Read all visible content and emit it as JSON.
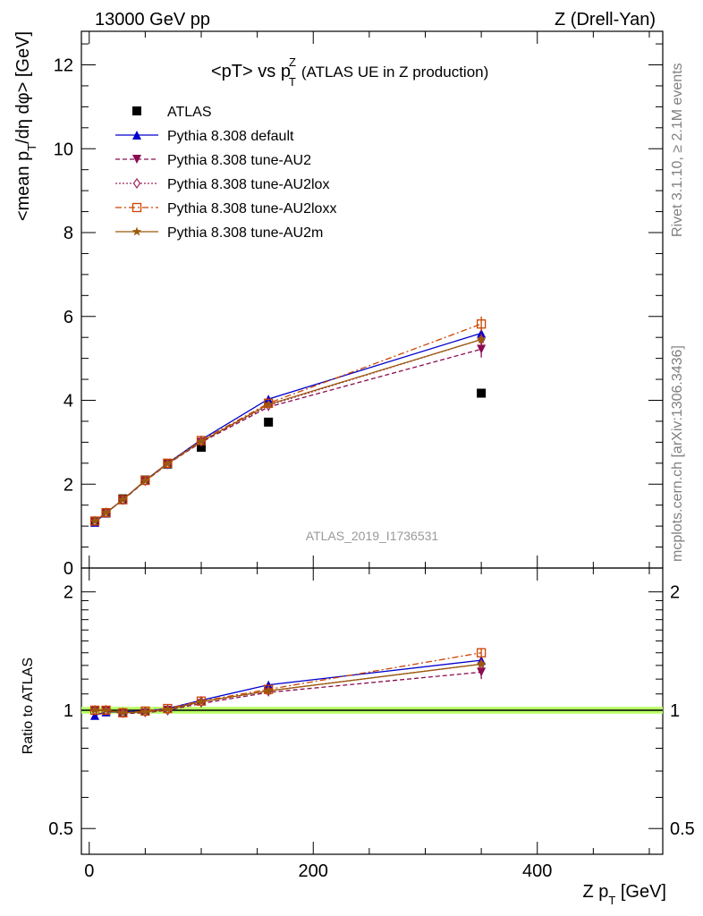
{
  "header": {
    "left": "13000 GeV pp",
    "right": "Z (Drell-Yan)"
  },
  "title": {
    "main": "<pT> vs p",
    "sup": "Z",
    "sub": "T",
    "suffix": "(ATLAS UE in Z production)"
  },
  "side_labels": {
    "rivet": "Rivet 3.1.10, ≥ 2.1M events",
    "mcplots": "mcplots.cern.ch [arXiv:1306.3436]"
  },
  "watermark": "ATLAS_2019_I1736531",
  "colors": {
    "ATLAS": "#000000",
    "Pythia 8.308 default": "#0000cc",
    "Pythia 8.308 tune-AU2": "#8b0a50",
    "Pythia 8.308 tune-AU2lox": "#a0245a",
    "Pythia 8.308 tune-AU2loxx": "#cc4400",
    "Pythia 8.308 tune-AU2m": "#9a5a0a",
    "ratio_band": "#b8ff66"
  },
  "chart_data": [
    {
      "type": "line",
      "panel": "main",
      "ylabel": "<mean p_T/dη dφ> [GeV]",
      "ylim": [
        0,
        12.8
      ],
      "yticks": [
        0,
        2,
        4,
        6,
        8,
        10,
        12
      ],
      "legend_placement": "top-left",
      "series": [
        {
          "name": "ATLAS",
          "marker": "square",
          "style": "none",
          "x": [
            5,
            15,
            30,
            50,
            70,
            100,
            160,
            350
          ],
          "y": [
            1.12,
            1.32,
            1.65,
            2.1,
            2.48,
            2.88,
            3.48,
            4.17
          ]
        },
        {
          "name": "Pythia 8.308 default",
          "marker": "triangle-up",
          "style": "solid",
          "x": [
            5,
            15,
            30,
            50,
            70,
            100,
            160,
            350
          ],
          "y": [
            1.09,
            1.31,
            1.63,
            2.09,
            2.5,
            3.06,
            4.03,
            5.6
          ],
          "err": [
            0,
            0,
            0,
            0,
            0,
            0,
            0,
            0.1
          ]
        },
        {
          "name": "Pythia 8.308 tune-AU2",
          "marker": "triangle-down",
          "style": "dashed",
          "x": [
            5,
            15,
            30,
            50,
            70,
            100,
            160,
            350
          ],
          "y": [
            1.12,
            1.32,
            1.62,
            2.07,
            2.48,
            3.0,
            3.84,
            5.22
          ],
          "err": [
            0,
            0,
            0,
            0,
            0,
            0,
            0.05,
            0.2
          ]
        },
        {
          "name": "Pythia 8.308 tune-AU2lox",
          "marker": "diamond-open",
          "style": "dotted",
          "x": [
            5,
            15,
            30,
            50,
            70,
            100,
            160,
            350
          ],
          "y": [
            1.12,
            1.32,
            1.63,
            2.08,
            2.48,
            3.02,
            3.88,
            5.45
          ],
          "err": [
            0,
            0,
            0,
            0,
            0,
            0,
            0.05,
            0.15
          ]
        },
        {
          "name": "Pythia 8.308 tune-AU2loxx",
          "marker": "square-open",
          "style": "dashdot",
          "x": [
            5,
            15,
            30,
            50,
            70,
            100,
            160,
            350
          ],
          "y": [
            1.12,
            1.32,
            1.63,
            2.09,
            2.5,
            3.04,
            3.93,
            5.82
          ],
          "err": [
            0,
            0,
            0,
            0,
            0,
            0,
            0.05,
            0.18
          ]
        },
        {
          "name": "Pythia 8.308 tune-AU2m",
          "marker": "star",
          "style": "solid",
          "x": [
            5,
            15,
            30,
            50,
            70,
            100,
            160,
            350
          ],
          "y": [
            1.12,
            1.32,
            1.63,
            2.08,
            2.49,
            3.02,
            3.9,
            5.45
          ],
          "err": [
            0,
            0,
            0,
            0,
            0,
            0,
            0,
            0.08
          ]
        }
      ]
    },
    {
      "type": "line",
      "panel": "ratio",
      "ylabel": "Ratio to ATLAS",
      "xlabel": "Z p_T [GeV]",
      "xlim": [
        -7,
        512
      ],
      "xticks": [
        0,
        200,
        400
      ],
      "ylim": [
        0.43,
        2.3
      ],
      "yscale": "log",
      "yticks": [
        0.5,
        1,
        2
      ],
      "band": [
        0.98,
        1.02
      ],
      "series": [
        {
          "name": "Pythia 8.308 default",
          "x": [
            5,
            15,
            30,
            50,
            70,
            100,
            160,
            350
          ],
          "y": [
            0.97,
            0.99,
            0.99,
            0.995,
            1.01,
            1.06,
            1.16,
            1.34
          ],
          "err": [
            0,
            0,
            0,
            0,
            0,
            0,
            0,
            0.02
          ]
        },
        {
          "name": "Pythia 8.308 tune-AU2",
          "x": [
            5,
            15,
            30,
            50,
            70,
            100,
            160,
            350
          ],
          "y": [
            1.0,
            1.0,
            0.98,
            0.985,
            1.0,
            1.04,
            1.11,
            1.25
          ],
          "err": [
            0,
            0,
            0,
            0,
            0,
            0,
            0.01,
            0.05
          ]
        },
        {
          "name": "Pythia 8.308 tune-AU2lox",
          "x": [
            5,
            15,
            30,
            50,
            70,
            100,
            160,
            350
          ],
          "y": [
            1.0,
            1.0,
            0.985,
            0.99,
            1.0,
            1.05,
            1.12,
            1.31
          ],
          "err": [
            0,
            0,
            0,
            0,
            0,
            0,
            0.01,
            0.04
          ]
        },
        {
          "name": "Pythia 8.308 tune-AU2loxx",
          "x": [
            5,
            15,
            30,
            50,
            70,
            100,
            160,
            350
          ],
          "y": [
            1.0,
            1.0,
            0.985,
            0.995,
            1.01,
            1.055,
            1.13,
            1.4
          ],
          "err": [
            0,
            0,
            0,
            0,
            0,
            0,
            0.01,
            0.04
          ]
        },
        {
          "name": "Pythia 8.308 tune-AU2m",
          "x": [
            5,
            15,
            30,
            50,
            70,
            100,
            160,
            350
          ],
          "y": [
            1.0,
            1.0,
            0.985,
            0.99,
            1.005,
            1.05,
            1.12,
            1.31
          ],
          "err": [
            0,
            0,
            0,
            0,
            0,
            0,
            0,
            0.02
          ]
        }
      ]
    }
  ]
}
